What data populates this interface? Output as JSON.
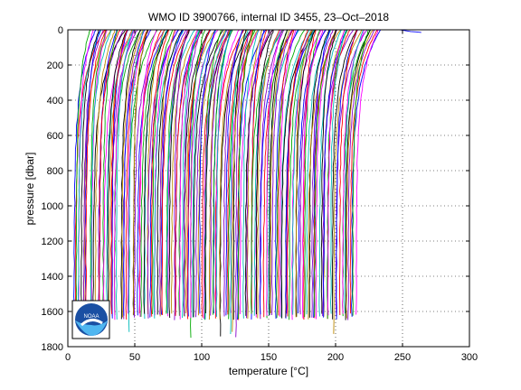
{
  "chart_data": {
    "type": "line",
    "title": "WMO ID 3900766, internal ID 3455, 23–Oct–2018",
    "xlabel": "temperature [°C]",
    "ylabel": "pressure [dbar]",
    "xlim": [
      0,
      300
    ],
    "ylim": [
      1800,
      0
    ],
    "y_reversed": true,
    "grid": true,
    "grid_style": "dotted",
    "x_ticks": [
      0,
      50,
      100,
      150,
      200,
      250,
      300
    ],
    "y_ticks": [
      0,
      200,
      400,
      600,
      800,
      1000,
      1200,
      1400,
      1600,
      1800
    ],
    "profile_count": 180,
    "profile_offset_range": [
      0,
      210
    ],
    "profile_surface_temperature_range": [
      14,
      28
    ],
    "profile_deep_temperature_range": [
      3,
      6
    ],
    "profile_max_pressure": 1650,
    "series_colors": [
      "#0000ff",
      "#ff0000",
      "#00aa00",
      "#ff00ff",
      "#00bbbb",
      "#000000",
      "#bb8800",
      "#8800cc"
    ],
    "stray_profile": {
      "x": [
        248,
        252,
        256,
        260,
        264
      ],
      "y": [
        0,
        5,
        10,
        12,
        15
      ]
    }
  },
  "logo": {
    "name": "noaa-logo",
    "text": "NOAA"
  }
}
